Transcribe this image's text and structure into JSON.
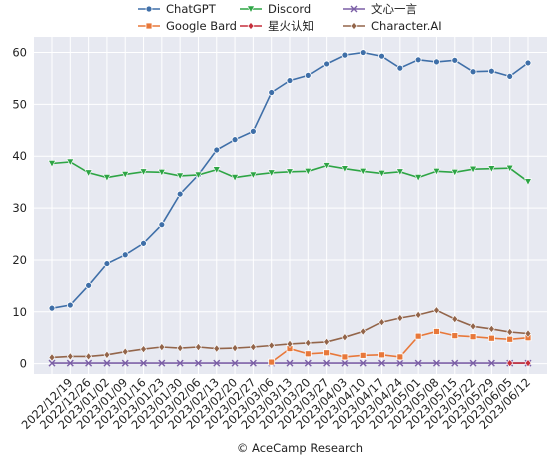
{
  "chart_data": {
    "type": "line",
    "title": "",
    "xlabel": "",
    "ylabel": "",
    "ylim": [
      -2,
      63
    ],
    "yticks": [
      0,
      10,
      20,
      30,
      40,
      50,
      60
    ],
    "grid": true,
    "legend_position": "top",
    "categories": [
      "2022/12/12",
      "2022/12/19",
      "2022/12/26",
      "2023/01/02",
      "2023/01/09",
      "2023/01/16",
      "2023/01/23",
      "2023/01/30",
      "2023/02/06",
      "2023/02/13",
      "2023/02/20",
      "2023/02/27",
      "2023/03/06",
      "2023/03/13",
      "2023/03/20",
      "2023/03/27",
      "2023/04/03",
      "2023/04/10",
      "2023/04/17",
      "2023/04/24",
      "2023/05/01",
      "2023/05/08",
      "2023/05/15",
      "2023/05/22",
      "2023/05/29",
      "2023/06/05",
      "2023/06/12"
    ],
    "series": [
      {
        "name": "ChatGPT",
        "color": "#3f6fa8",
        "marker": "circle",
        "values": [
          10.7,
          11.3,
          15.1,
          19.3,
          21.0,
          23.2,
          26.8,
          32.7,
          36.4,
          41.2,
          43.2,
          44.8,
          52.3,
          54.6,
          55.6,
          57.8,
          59.5,
          60.0,
          59.3,
          57.0,
          58.6,
          58.2,
          58.5,
          56.3,
          56.4,
          55.4,
          58.0
        ]
      },
      {
        "name": "Discord",
        "color": "#2ea545",
        "marker": "triangle-down",
        "values": [
          38.6,
          38.9,
          36.8,
          35.9,
          36.5,
          37.0,
          36.9,
          36.2,
          36.4,
          37.4,
          35.9,
          36.4,
          36.8,
          37.0,
          37.1,
          38.2,
          37.6,
          37.1,
          36.7,
          37.0,
          35.9,
          37.1,
          36.9,
          37.5,
          37.6,
          37.7,
          35.1
        ]
      },
      {
        "name": "文心一言",
        "color": "#7b5fa6",
        "marker": "x",
        "values": [
          0.1,
          0.1,
          0.1,
          0.1,
          0.1,
          0.1,
          0.1,
          0.1,
          0.1,
          0.1,
          0.1,
          0.1,
          0.1,
          0.1,
          0.1,
          0.1,
          0.1,
          0.1,
          0.1,
          0.1,
          0.1,
          0.1,
          0.1,
          0.1,
          0.1,
          0.1,
          0.1
        ]
      },
      {
        "name": "Google Bard",
        "color": "#e8783a",
        "marker": "square",
        "values": [
          null,
          null,
          null,
          null,
          null,
          null,
          null,
          null,
          null,
          null,
          null,
          null,
          0.3,
          2.9,
          1.9,
          2.1,
          1.3,
          1.6,
          1.7,
          1.3,
          5.3,
          6.2,
          5.4,
          5.2,
          4.9,
          4.7,
          5.0
        ]
      },
      {
        "name": "星火认知",
        "color": "#c62f3c",
        "marker": "diamond",
        "values": [
          null,
          null,
          null,
          null,
          null,
          null,
          null,
          null,
          null,
          null,
          null,
          null,
          null,
          null,
          null,
          null,
          null,
          null,
          null,
          null,
          null,
          null,
          null,
          null,
          null,
          0.1,
          0.1
        ]
      },
      {
        "name": "Character.AI",
        "color": "#93654a",
        "marker": "diamond",
        "values": [
          1.2,
          1.4,
          1.4,
          1.7,
          2.3,
          2.8,
          3.2,
          3.0,
          3.2,
          2.9,
          3.0,
          3.2,
          3.5,
          3.8,
          4.0,
          4.2,
          5.1,
          6.2,
          8.0,
          8.8,
          9.4,
          10.3,
          8.6,
          7.2,
          6.7,
          6.1,
          5.8
        ]
      }
    ]
  },
  "source_label": "© AceCamp Research"
}
